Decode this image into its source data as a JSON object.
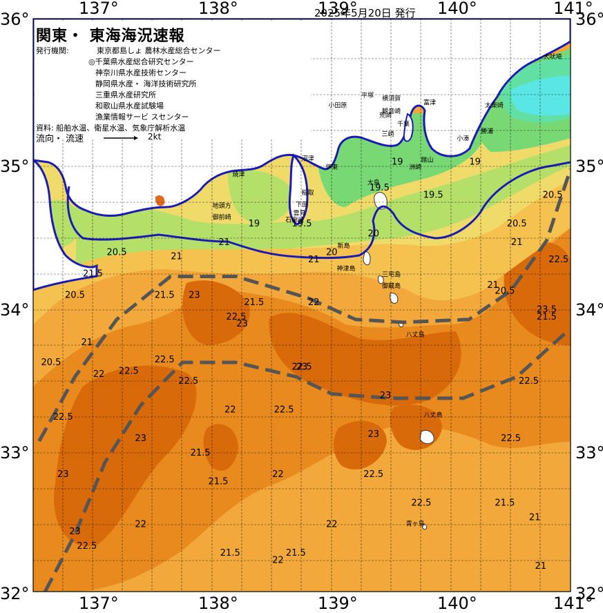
{
  "title": "関東・ 東海海況速報",
  "issued": "2025年5月20日 発行",
  "agency_heading": "発行機関:",
  "agencies": [
    "東京都島しょ 農林水産総合センター",
    "◎千葉県水産総合研究センター",
    "神奈川県水産技術センター",
    "静岡県水産・ 海洋技術研究所",
    "三重県水産研究所",
    "和歌山県水産試験場",
    "漁業情報サービ スセンター"
  ],
  "data_source": "資料: 船舶水温、衛星水温、気象庁解析水温",
  "flow_label": "流向・ 流速",
  "flow_scale": "2kt",
  "longitude_labels": [
    "137°",
    "138°",
    "139°",
    "140°",
    "141°"
  ],
  "latitude_labels": [
    "36°",
    "35°",
    "34°",
    "33°",
    "32°"
  ],
  "map": {
    "lon_range": [
      136.5,
      141.0
    ],
    "lat_range": [
      32.0,
      36.0
    ],
    "isotherm_unit": "°C",
    "colors": {
      "temp_24": "#d96a0a",
      "temp_23": "#e88a1e",
      "temp_22": "#f2a83a",
      "temp_21": "#f5c24f",
      "temp_20": "#f0da6a",
      "temp_19": "#b4e06a",
      "temp_18": "#78d874",
      "temp_17": "#62e0a4",
      "temp_16": "#5be6e6",
      "land": "#ffffff",
      "boundary_line": "#1a1ab4",
      "kuroshio_axis": "#555555"
    },
    "places": [
      {
        "name": "犬吠埼",
        "lon": 140.85,
        "lat": 35.72
      },
      {
        "name": "太東崎",
        "lon": 140.36,
        "lat": 35.38
      },
      {
        "name": "勝浦",
        "lon": 140.3,
        "lat": 35.2
      },
      {
        "name": "小湊",
        "lon": 140.1,
        "lat": 35.15
      },
      {
        "name": "富津",
        "lon": 139.82,
        "lat": 35.4
      },
      {
        "name": "千葉",
        "lon": 139.6,
        "lat": 35.25
      },
      {
        "name": "館山",
        "lon": 139.8,
        "lat": 35.0
      },
      {
        "name": "洲崎",
        "lon": 139.7,
        "lat": 34.95
      },
      {
        "name": "横須賀",
        "lon": 139.5,
        "lat": 35.43
      },
      {
        "name": "観音崎",
        "lon": 139.5,
        "lat": 35.34
      },
      {
        "name": "平塚",
        "lon": 139.3,
        "lat": 35.45
      },
      {
        "name": "荒崎",
        "lon": 139.45,
        "lat": 35.31
      },
      {
        "name": "三崎",
        "lon": 139.47,
        "lat": 35.18
      },
      {
        "name": "小田原",
        "lon": 139.05,
        "lat": 35.38
      },
      {
        "name": "沼津",
        "lon": 138.8,
        "lat": 35.01
      },
      {
        "name": "伊東",
        "lon": 139.0,
        "lat": 34.95
      },
      {
        "name": "大島",
        "lon": 139.35,
        "lat": 34.84
      },
      {
        "name": "稲取",
        "lon": 138.8,
        "lat": 34.77
      },
      {
        "name": "下田",
        "lon": 138.75,
        "lat": 34.69
      },
      {
        "name": "雲見",
        "lon": 138.73,
        "lat": 34.63
      },
      {
        "name": "石廊崎",
        "lon": 138.69,
        "lat": 34.58
      },
      {
        "name": "焼津",
        "lon": 138.22,
        "lat": 34.9
      },
      {
        "name": "地頭方",
        "lon": 138.08,
        "lat": 34.68
      },
      {
        "name": "御前崎",
        "lon": 138.08,
        "lat": 34.6
      },
      {
        "name": "新島",
        "lon": 139.1,
        "lat": 34.4
      },
      {
        "name": "神津島",
        "lon": 139.12,
        "lat": 34.24
      },
      {
        "name": "三宅島",
        "lon": 139.5,
        "lat": 34.2
      },
      {
        "name": "御蔵島",
        "lon": 139.5,
        "lat": 34.12
      },
      {
        "name": "八丈島",
        "lon": 139.7,
        "lat": 33.78
      },
      {
        "name": "八丈島",
        "lon": 139.85,
        "lat": 33.22
      },
      {
        "name": "青ヶ島",
        "lon": 139.7,
        "lat": 32.46
      }
    ],
    "isotherm_labels": [
      {
        "text": "19",
        "lon": 139.55,
        "lat": 34.98
      },
      {
        "text": "19",
        "lon": 138.35,
        "lat": 34.55
      },
      {
        "text": "19",
        "lon": 140.2,
        "lat": 34.98
      },
      {
        "text": "19.5",
        "lon": 138.75,
        "lat": 34.55
      },
      {
        "text": "19.5",
        "lon": 139.4,
        "lat": 34.8
      },
      {
        "text": "19.5",
        "lon": 139.85,
        "lat": 34.75
      },
      {
        "text": "20",
        "lon": 139.35,
        "lat": 34.48
      },
      {
        "text": "20",
        "lon": 139.0,
        "lat": 34.35
      },
      {
        "text": "20.5",
        "lon": 137.2,
        "lat": 34.35
      },
      {
        "text": "20.5",
        "lon": 136.85,
        "lat": 34.05
      },
      {
        "text": "20.5",
        "lon": 140.55,
        "lat": 34.55
      },
      {
        "text": "20.5",
        "lon": 140.45,
        "lat": 34.08
      },
      {
        "text": "20.5",
        "lon": 140.85,
        "lat": 34.75
      },
      {
        "text": "20.5",
        "lon": 136.65,
        "lat": 33.58
      },
      {
        "text": "21",
        "lon": 140.55,
        "lat": 34.42
      },
      {
        "text": "21",
        "lon": 140.35,
        "lat": 34.12
      },
      {
        "text": "21",
        "lon": 137.7,
        "lat": 34.32
      },
      {
        "text": "21",
        "lon": 138.85,
        "lat": 34.3
      },
      {
        "text": "21",
        "lon": 138.1,
        "lat": 34.42
      },
      {
        "text": "21",
        "lon": 136.95,
        "lat": 33.72
      },
      {
        "text": "21",
        "lon": 140.7,
        "lat": 32.5
      },
      {
        "text": "21",
        "lon": 140.75,
        "lat": 32.16
      },
      {
        "text": "21.5",
        "lon": 137.0,
        "lat": 34.2
      },
      {
        "text": "21.5",
        "lon": 137.6,
        "lat": 34.05
      },
      {
        "text": "21.5",
        "lon": 138.35,
        "lat": 34.0
      },
      {
        "text": "21.5",
        "lon": 140.8,
        "lat": 33.9
      },
      {
        "text": "21.5",
        "lon": 137.9,
        "lat": 32.95
      },
      {
        "text": "21.5",
        "lon": 138.05,
        "lat": 32.75
      },
      {
        "text": "21.5",
        "lon": 140.45,
        "lat": 32.6
      },
      {
        "text": "21.5",
        "lon": 138.15,
        "lat": 32.25
      },
      {
        "text": "21.5",
        "lon": 138.7,
        "lat": 32.25
      },
      {
        "text": "22",
        "lon": 138.85,
        "lat": 34.0
      },
      {
        "text": "22",
        "lon": 137.05,
        "lat": 33.5
      },
      {
        "text": "22",
        "lon": 138.15,
        "lat": 33.25
      },
      {
        "text": "22",
        "lon": 138.55,
        "lat": 32.8
      },
      {
        "text": "22",
        "lon": 137.4,
        "lat": 32.45
      },
      {
        "text": "22",
        "lon": 138.55,
        "lat": 32.2
      },
      {
        "text": "22",
        "lon": 139.0,
        "lat": 32.45
      },
      {
        "text": "22.5",
        "lon": 137.3,
        "lat": 33.52
      },
      {
        "text": "22.5",
        "lon": 137.6,
        "lat": 33.6
      },
      {
        "text": "22.5",
        "lon": 138.2,
        "lat": 33.9
      },
      {
        "text": "22.5",
        "lon": 137.8,
        "lat": 33.45
      },
      {
        "text": "22.5",
        "lon": 138.6,
        "lat": 33.25
      },
      {
        "text": "22.5",
        "lon": 136.75,
        "lat": 33.2
      },
      {
        "text": "22.5",
        "lon": 139.35,
        "lat": 32.8
      },
      {
        "text": "22.5",
        "lon": 139.75,
        "lat": 32.6
      },
      {
        "text": "22.5",
        "lon": 140.5,
        "lat": 33.05
      },
      {
        "text": "22.5",
        "lon": 140.65,
        "lat": 33.45
      },
      {
        "text": "22.5",
        "lon": 136.95,
        "lat": 32.3
      },
      {
        "text": "22.5",
        "lon": 138.75,
        "lat": 33.55
      },
      {
        "text": "23",
        "lon": 138.25,
        "lat": 33.85
      },
      {
        "text": "23",
        "lon": 137.85,
        "lat": 34.05
      },
      {
        "text": "23",
        "lon": 137.4,
        "lat": 33.05
      },
      {
        "text": "23",
        "lon": 136.75,
        "lat": 32.8
      },
      {
        "text": "23",
        "lon": 139.35,
        "lat": 33.08
      },
      {
        "text": "23",
        "lon": 139.45,
        "lat": 33.35
      },
      {
        "text": "23",
        "lon": 136.85,
        "lat": 32.4
      },
      {
        "text": "23",
        "lon": 138.75,
        "lat": 33.55
      },
      {
        "text": "23.5",
        "lon": 140.8,
        "lat": 33.95
      },
      {
        "text": "22.5",
        "lon": 140.9,
        "lat": 34.3
      }
    ],
    "kuroshio_axes": [
      {
        "points": [
          [
            136.55,
            33.05
          ],
          [
            136.85,
            33.5
          ],
          [
            137.2,
            33.9
          ],
          [
            137.65,
            34.2
          ],
          [
            138.2,
            34.2
          ],
          [
            138.8,
            34.05
          ],
          [
            139.2,
            33.9
          ],
          [
            139.6,
            33.88
          ],
          [
            140.15,
            33.9
          ],
          [
            140.5,
            34.1
          ],
          [
            140.8,
            34.45
          ],
          [
            141.0,
            34.95
          ]
        ]
      },
      {
        "points": [
          [
            136.6,
            32.0
          ],
          [
            136.85,
            32.4
          ],
          [
            137.1,
            32.9
          ],
          [
            137.4,
            33.3
          ],
          [
            137.75,
            33.6
          ],
          [
            138.2,
            33.6
          ],
          [
            138.7,
            33.5
          ],
          [
            139.0,
            33.38
          ],
          [
            139.5,
            33.35
          ],
          [
            140.1,
            33.35
          ],
          [
            140.55,
            33.5
          ],
          [
            140.95,
            33.8
          ]
        ]
      }
    ]
  }
}
